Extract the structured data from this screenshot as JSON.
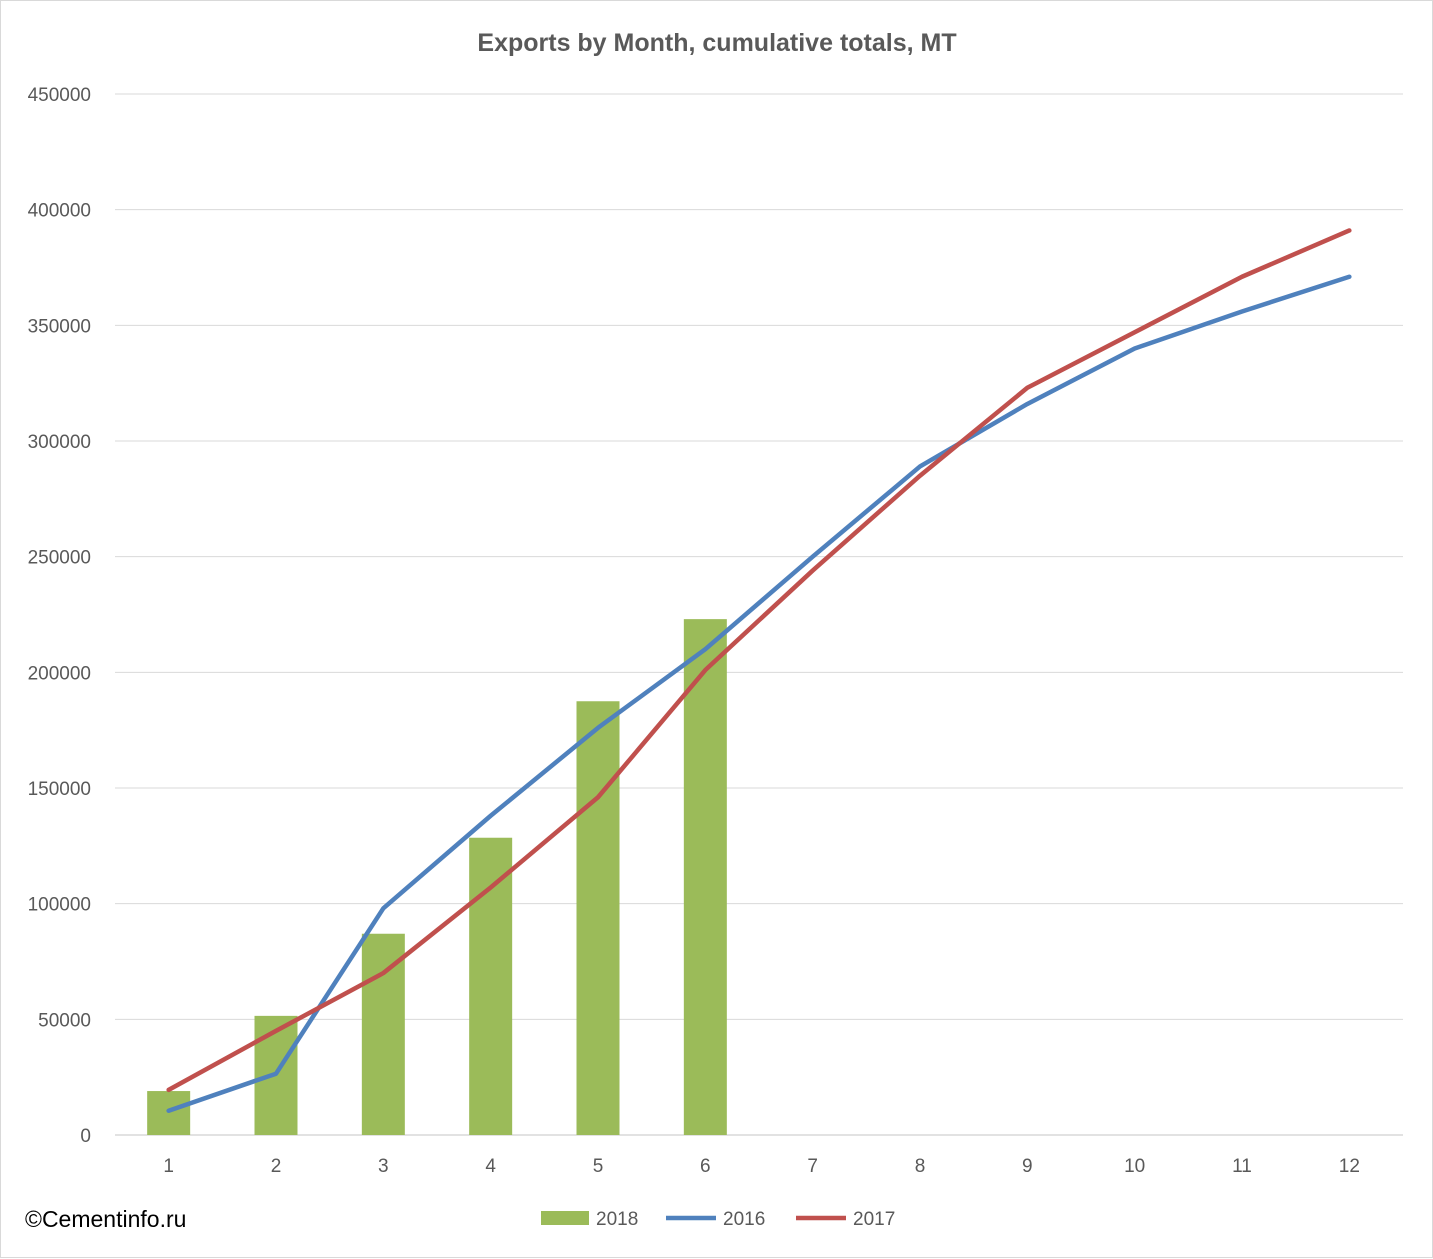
{
  "watermark": "©Cementinfo.ru",
  "colors": {
    "2018": "#9bbb59",
    "2016": "#4f81bd",
    "2017": "#c0504d",
    "grid": "#d9d9d9",
    "text": "#595959"
  },
  "chart_data": {
    "type": "bar",
    "title": "Exports by Month, cumulative totals, MT",
    "xlabel": "",
    "ylabel": "",
    "categories": [
      "1",
      "2",
      "3",
      "4",
      "5",
      "6",
      "7",
      "8",
      "9",
      "10",
      "11",
      "12"
    ],
    "ylim": [
      0,
      450000
    ],
    "yticks": [
      "0",
      "50000",
      "100000",
      "150000",
      "200000",
      "250000",
      "300000",
      "350000",
      "400000",
      "450000"
    ],
    "grid": true,
    "legend_position": "bottom",
    "series": [
      {
        "name": "2018",
        "type": "bar",
        "values": [
          19000,
          51500,
          87000,
          128500,
          187500,
          223000,
          null,
          null,
          null,
          null,
          null,
          null
        ]
      },
      {
        "name": "2016",
        "type": "line",
        "values": [
          10500,
          26500,
          98000,
          138000,
          176000,
          210000,
          250000,
          289000,
          316000,
          340000,
          356000,
          371000
        ]
      },
      {
        "name": "2017",
        "type": "line",
        "values": [
          19500,
          45000,
          70000,
          107000,
          146000,
          201000,
          244000,
          285000,
          323000,
          347000,
          371000,
          391000
        ]
      }
    ]
  }
}
